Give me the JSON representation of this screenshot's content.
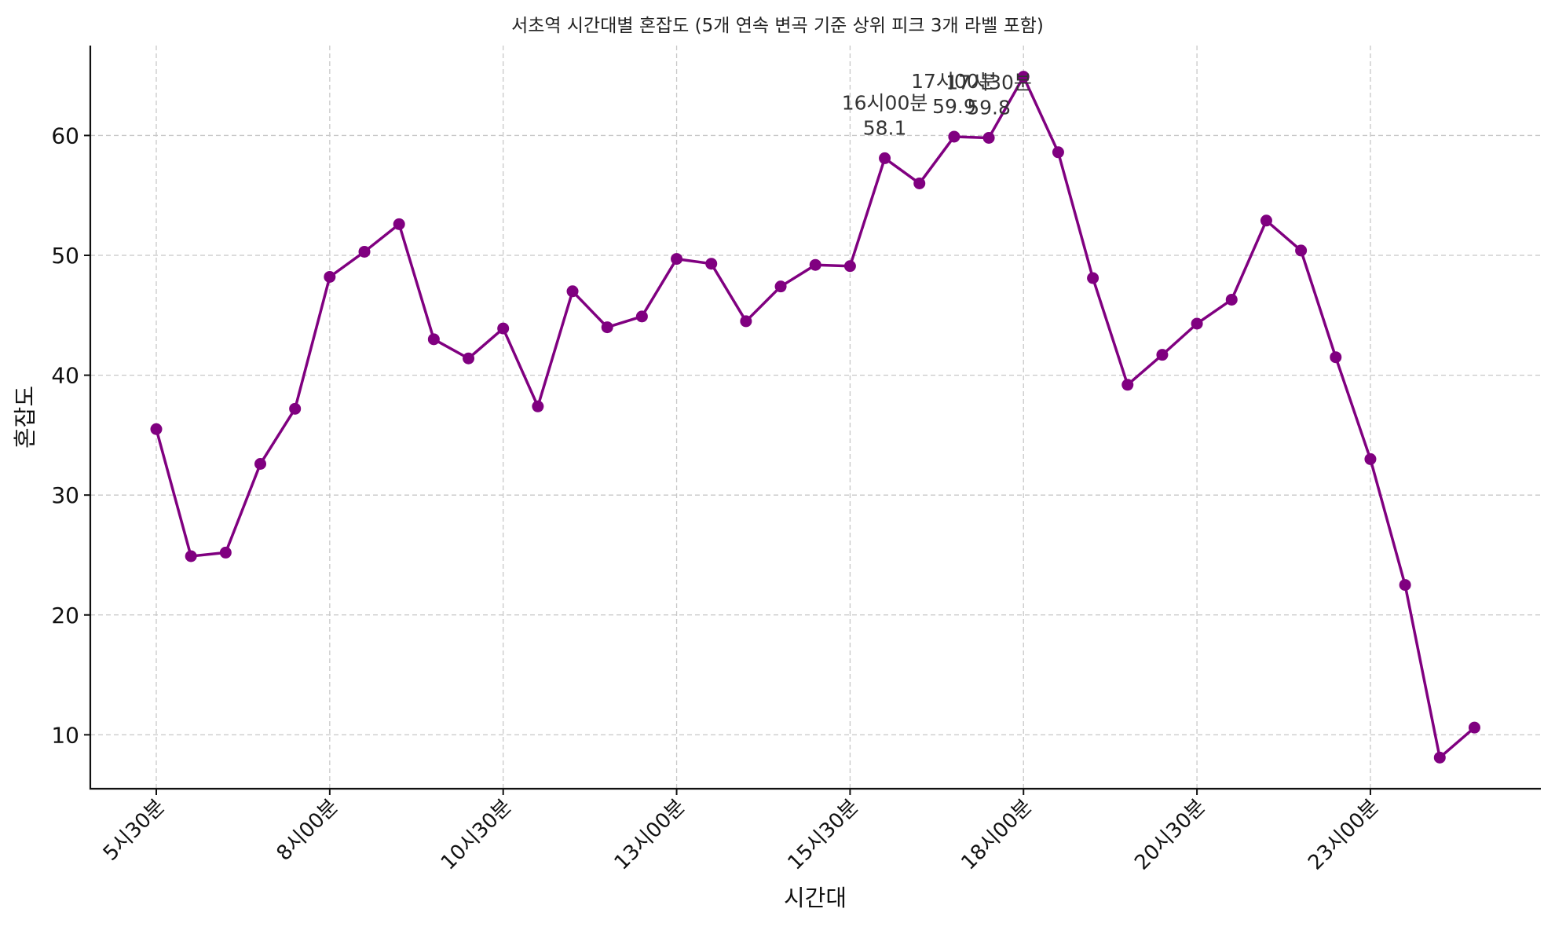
{
  "chart_data": {
    "type": "line",
    "title": "서초역 시간대별 혼잡도 (5개 연속 변곡 기준 상위 피크 3개 라벨 포함)",
    "xlabel": "시간대",
    "ylabel": "혼잡도",
    "x": [
      "5시30분",
      "6시00분",
      "6시30분",
      "7시00분",
      "7시30분",
      "8시00분",
      "8시30분",
      "9시00분",
      "9시30분",
      "10시00분",
      "10시30분",
      "11시00분",
      "11시30분",
      "12시00분",
      "12시30분",
      "13시00분",
      "13시30분",
      "14시00분",
      "14시30분",
      "15시00분",
      "15시30분",
      "16시00분",
      "16시30분",
      "17시00분",
      "17시30분",
      "18시00분",
      "18시30분",
      "19시00분",
      "19시30분",
      "20시00분",
      "20시30분",
      "21시00분",
      "21시30분",
      "22시00분",
      "22시30분",
      "23시00분",
      "23시30분",
      "24시00분",
      "00시30분"
    ],
    "xticks": [
      "5시30분",
      "8시00분",
      "10시30분",
      "13시00분",
      "15시30분",
      "18시00분",
      "20시30분",
      "23시00분"
    ],
    "yticks": [
      10,
      20,
      30,
      40,
      50,
      60
    ],
    "ylim": [
      5.5,
      67.5
    ],
    "grid": true,
    "color": "#800080",
    "series": [
      {
        "values": [
          35.5,
          24.9,
          25.2,
          32.6,
          37.2,
          48.2,
          50.3,
          52.6,
          43.0,
          41.4,
          43.9,
          37.4,
          47.0,
          44.0,
          44.9,
          49.7,
          49.3,
          44.5,
          47.4,
          49.2,
          49.1,
          58.1,
          56.0,
          59.9,
          59.8,
          64.9,
          58.6,
          48.1,
          39.2,
          41.7,
          44.3,
          46.3,
          52.9,
          50.4,
          41.5,
          33.0,
          22.5,
          8.1,
          10.6
        ]
      }
    ],
    "annotations": [
      {
        "index": 21,
        "time": "16시00분",
        "value": "58.1"
      },
      {
        "index": 23,
        "time": "17시00분",
        "value": "59.9"
      },
      {
        "index": 24,
        "time": "17시30분",
        "value": "59.8"
      }
    ]
  }
}
